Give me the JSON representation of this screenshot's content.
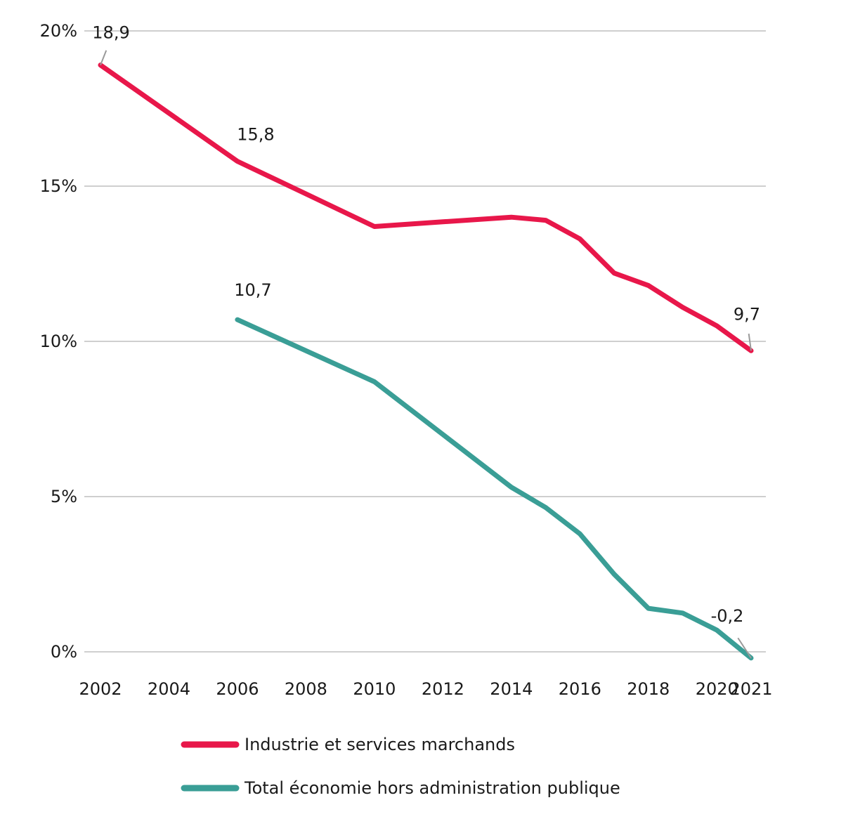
{
  "chart_data": {
    "type": "line",
    "x": [
      2002,
      2004,
      2006,
      2008,
      2010,
      2012,
      2014,
      2015,
      2016,
      2017,
      2018,
      2019,
      2020,
      2021
    ],
    "x_ticks": [
      "2002",
      "2004",
      "2006",
      "2008",
      "2010",
      "2012",
      "2014",
      "2016",
      "2018",
      "2020",
      "2021"
    ],
    "y_ticks": [
      "0%",
      "5%",
      "10%",
      "15%",
      "20%"
    ],
    "ylim": [
      0,
      20
    ],
    "grid": true,
    "legend_position": "bottom",
    "series": [
      {
        "name": "Industrie et services marchands",
        "color": "#e8174a",
        "points": [
          [
            2002,
            18.9
          ],
          [
            2004,
            17.35
          ],
          [
            2006,
            15.8
          ],
          [
            2008,
            14.75
          ],
          [
            2010,
            13.7
          ],
          [
            2012,
            13.85
          ],
          [
            2014,
            14.0
          ],
          [
            2015,
            13.9
          ],
          [
            2016,
            13.3
          ],
          [
            2017,
            12.2
          ],
          [
            2018,
            11.8
          ],
          [
            2019,
            11.1
          ],
          [
            2020,
            10.5
          ],
          [
            2021,
            9.7
          ]
        ],
        "labels": [
          {
            "x": 2002,
            "text": "18,9"
          },
          {
            "x": 2006,
            "text": "15,8"
          },
          {
            "x": 2021,
            "text": "9,7"
          }
        ]
      },
      {
        "name": "Total économie hors administration publique",
        "color": "#3a9e96",
        "points": [
          [
            2006,
            10.7
          ],
          [
            2008,
            9.7
          ],
          [
            2010,
            8.7
          ],
          [
            2012,
            7.0
          ],
          [
            2014,
            5.3
          ],
          [
            2015,
            4.65
          ],
          [
            2016,
            3.8
          ],
          [
            2017,
            2.5
          ],
          [
            2018,
            1.4
          ],
          [
            2019,
            1.25
          ],
          [
            2020,
            0.7
          ],
          [
            2021,
            -0.2
          ]
        ],
        "labels": [
          {
            "x": 2006,
            "text": "10,7"
          },
          {
            "x": 2021,
            "text": "-0,2"
          }
        ]
      }
    ]
  }
}
